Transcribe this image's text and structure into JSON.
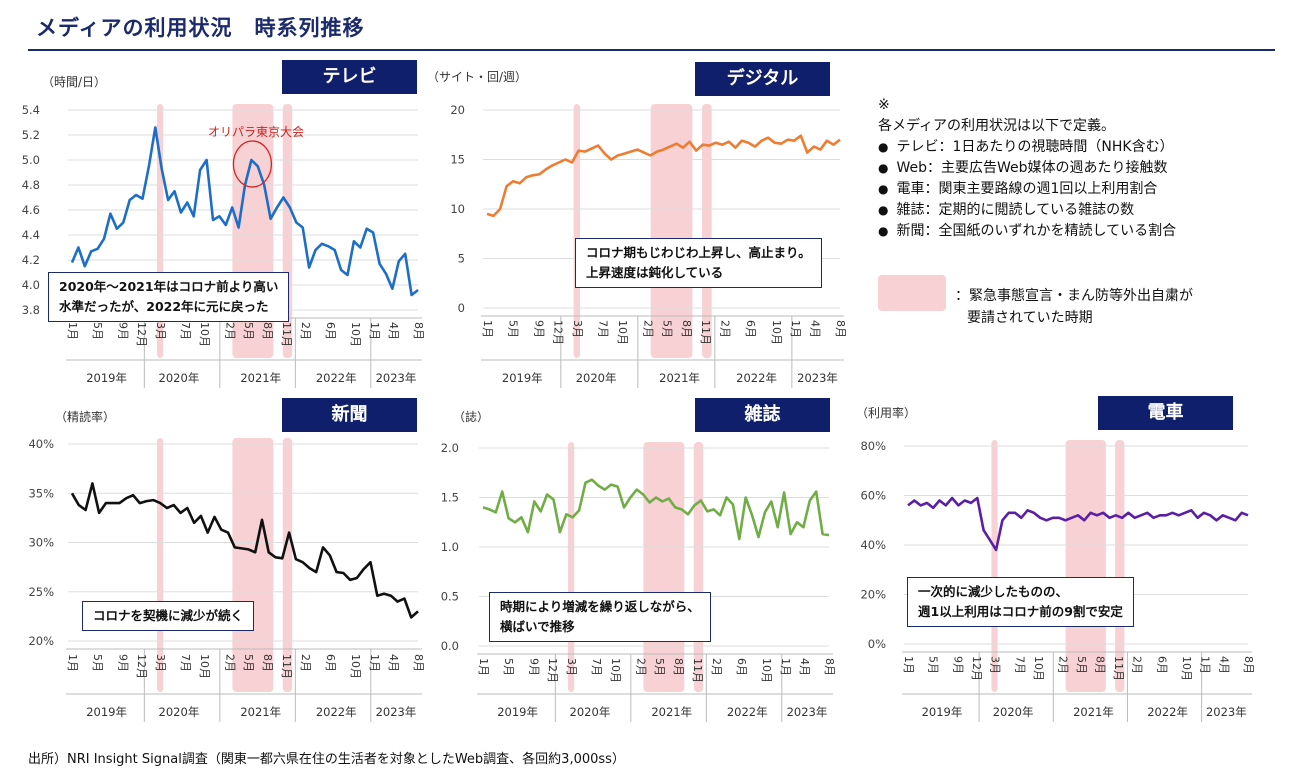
{
  "page": {
    "title": "メディアの利用状況　時系列推移",
    "source": "出所）NRI Insight Signal調査（関東一都六県在住の生活者を対象としたWeb調査、各回約3,000ss）"
  },
  "legend": {
    "symbol": "※",
    "intro": "各メディアの利用状況は以下で定義。",
    "items": [
      "テレビ：1日あたりの視聴時間（NHK含む）",
      "Web：主要広告Web媒体の週あたり接触数",
      "電車：関東主要路線の週1回以上利用割合",
      "雑誌：定期的に閲読している雑誌の数",
      "新聞：全国紙のいずれかを精読している割合"
    ],
    "emergency_line1": "：緊急事態宣言・まん防等外出自粛が",
    "emergency_line2": "要請されていた時期",
    "shade_color": "#f7d1d3"
  },
  "x_axis": {
    "month_labels": [
      "1月",
      "5月",
      "9月",
      "12月",
      "3月",
      "7月",
      "10月",
      "2月",
      "5月",
      "8月",
      "11月",
      "2月",
      "6月",
      "10月",
      "1月",
      "4月",
      "8月"
    ],
    "year_labels": [
      "2019年",
      "2020年",
      "2021年",
      "2022年",
      "2023年"
    ]
  },
  "chart_data": [
    {
      "id": "tv",
      "type": "line",
      "title": "テレビ",
      "unit": "（時間/日）",
      "ylabel": "（時間/日）",
      "color": "#1e6ec8",
      "ylim": [
        3.8,
        5.4
      ],
      "yticks": [
        "3.8",
        "4.0",
        "4.2",
        "4.4",
        "4.6",
        "4.8",
        "5.0",
        "5.2",
        "5.4"
      ],
      "values": [
        4.18,
        4.3,
        4.15,
        4.27,
        4.29,
        4.37,
        4.57,
        4.45,
        4.5,
        4.68,
        4.72,
        4.69,
        4.95,
        5.26,
        4.93,
        4.68,
        4.75,
        4.58,
        4.66,
        4.55,
        4.92,
        5.0,
        4.52,
        4.55,
        4.48,
        4.62,
        4.46,
        4.8,
        5.0,
        4.95,
        4.8,
        4.53,
        4.62,
        4.7,
        4.62,
        4.5,
        4.46,
        4.14,
        4.28,
        4.33,
        4.31,
        4.28,
        4.12,
        4.08,
        4.35,
        4.3,
        4.45,
        4.42,
        4.17,
        4.09,
        3.97,
        4.19,
        4.25,
        3.92,
        3.96
      ],
      "annotation": "オリパラ東京大会",
      "note": [
        "2020年～2021年はコロナ前より高い",
        "水準だったが、2022年に元に戻った"
      ]
    },
    {
      "id": "digital",
      "type": "line",
      "title": "デジタル",
      "unit": "（サイト・回/週）",
      "ylabel": "（サイト・回/週）",
      "color": "#ed7d31",
      "ylim": [
        0,
        20
      ],
      "yticks": [
        "0",
        "5",
        "10",
        "15",
        "20"
      ],
      "values": [
        9.5,
        9.3,
        10,
        12.3,
        12.8,
        12.6,
        13.2,
        13.4,
        13.5,
        14,
        14.4,
        14.7,
        15,
        14.7,
        15.9,
        15.8,
        16.1,
        16.4,
        15.6,
        15,
        15.4,
        15.6,
        15.8,
        16,
        15.7,
        15.4,
        15.8,
        16,
        16.3,
        16.6,
        16.2,
        16.8,
        15.9,
        16.5,
        16.4,
        16.7,
        16.5,
        16.8,
        16.2,
        16.9,
        16.7,
        16.3,
        16.9,
        17.2,
        16.7,
        16.6,
        17,
        16.9,
        17.4,
        15.7,
        16.3,
        16,
        16.9,
        16.5,
        17
      ],
      "note": [
        "コロナ期もじわじわ上昇し、高止まり。",
        "上昇速度は鈍化している"
      ]
    },
    {
      "id": "newspaper",
      "type": "line",
      "title": "新聞",
      "unit": "（精読率）",
      "ylabel": "（精読率）",
      "color": "#111111",
      "ylim": [
        20,
        40
      ],
      "yticks": [
        "20%",
        "25%",
        "30%",
        "35%",
        "40%"
      ],
      "values": [
        35,
        33.8,
        33.3,
        36,
        33,
        34,
        34,
        34,
        34.5,
        34.8,
        34,
        34.2,
        34.3,
        34,
        33.5,
        33.8,
        33,
        33.5,
        32,
        32.7,
        31,
        32.6,
        31.3,
        31,
        29.5,
        29.4,
        29.3,
        29,
        32.3,
        29,
        28.5,
        28.4,
        31,
        28.3,
        28,
        27.4,
        27,
        29.5,
        28.7,
        27,
        26.9,
        26.2,
        26.4,
        27.3,
        28,
        24.6,
        24.8,
        24.6,
        24,
        24.3,
        22.4,
        23
      ],
      "note": [
        "コロナを契機に減少が続く"
      ]
    },
    {
      "id": "magazine",
      "type": "line",
      "title": "雑誌",
      "unit": "（誌）",
      "ylabel": "（誌）",
      "color": "#70ad47",
      "ylim": [
        0,
        2
      ],
      "yticks": [
        "0.0",
        "0.5",
        "1.0",
        "1.5",
        "2.0"
      ],
      "values": [
        1.4,
        1.38,
        1.35,
        1.56,
        1.29,
        1.25,
        1.3,
        1.15,
        1.46,
        1.36,
        1.53,
        1.48,
        1.15,
        1.33,
        1.3,
        1.37,
        1.65,
        1.68,
        1.62,
        1.58,
        1.63,
        1.61,
        1.4,
        1.5,
        1.58,
        1.53,
        1.45,
        1.5,
        1.46,
        1.49,
        1.4,
        1.38,
        1.33,
        1.42,
        1.47,
        1.36,
        1.38,
        1.32,
        1.5,
        1.43,
        1.08,
        1.5,
        1.32,
        1.1,
        1.35,
        1.46,
        1.2,
        1.55,
        1.13,
        1.25,
        1.2,
        1.47,
        1.56,
        1.13,
        1.12
      ],
      "note": [
        "時期により増減を繰り返しながら、",
        "横ばいで推移"
      ]
    },
    {
      "id": "train",
      "type": "line",
      "title": "電車",
      "unit": "（利用率）",
      "ylabel": "（利用率）",
      "color": "#5b1fa5",
      "ylim": [
        0,
        80
      ],
      "yticks": [
        "0%",
        "20%",
        "40%",
        "60%",
        "80%"
      ],
      "values": [
        56,
        58,
        56,
        57,
        55,
        58,
        56,
        59,
        56,
        58,
        57,
        59,
        46,
        42,
        38,
        50,
        53,
        53,
        51,
        54,
        53,
        51,
        50,
        51,
        51,
        50,
        51,
        52,
        50,
        53,
        52,
        53,
        51,
        52,
        51,
        53,
        51,
        52,
        53,
        51,
        52,
        52,
        53,
        52,
        53,
        54,
        51,
        53,
        52,
        50,
        52,
        51,
        50,
        53,
        52
      ],
      "note": [
        "一次的に減少したものの、",
        "週1以上利用はコロナ前の9割で安定"
      ]
    }
  ]
}
